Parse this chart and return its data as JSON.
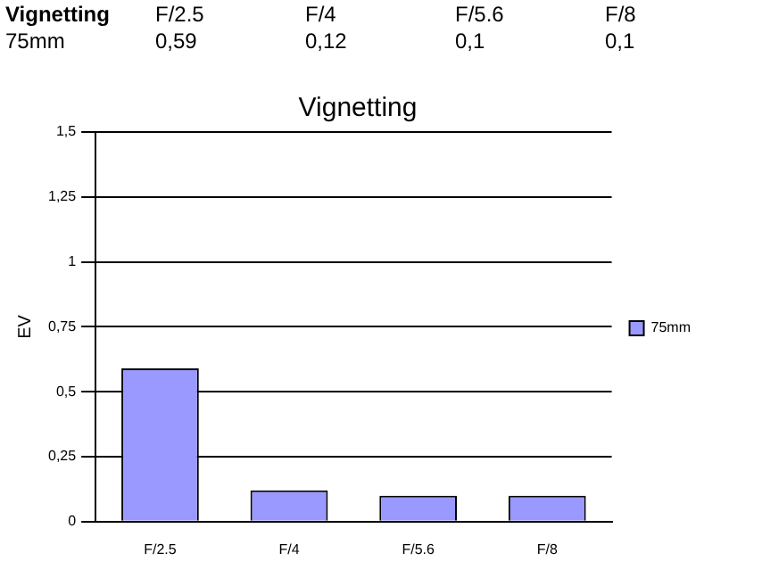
{
  "chart_data": {
    "type": "bar",
    "title": "Vignetting",
    "ylabel": "EV",
    "categories": [
      "F/2.5",
      "F/4",
      "F/5.6",
      "F/8"
    ],
    "series": [
      {
        "name": "75mm",
        "color": "#9999ff",
        "values": [
          0.59,
          0.12,
          0.1,
          0.1
        ]
      }
    ],
    "value_labels": [
      "0,59",
      "0,12",
      "0,1",
      "0,1"
    ],
    "ylim": [
      0,
      1.5
    ],
    "yticks": [
      0,
      {
        "value": 0.25,
        "label": "0,25"
      },
      {
        "value": 0.5,
        "label": "0,5"
      },
      {
        "value": 0.75,
        "label": "0,75"
      },
      1,
      {
        "value": 1.25,
        "label": "1,25"
      },
      {
        "value": 1.5,
        "label": "1,5"
      }
    ],
    "grid": "y",
    "legend": "right",
    "data_labels": false
  }
}
